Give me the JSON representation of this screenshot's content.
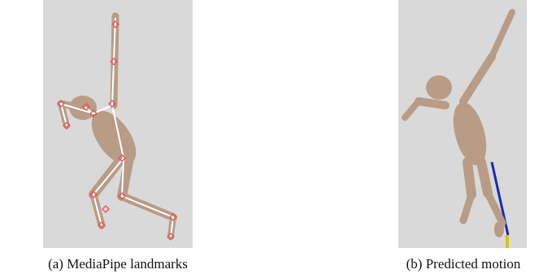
{
  "figure": {
    "panels": [
      {
        "caption": "(a) MediaPipe landmarks"
      },
      {
        "caption": "(b) Predicted motion"
      }
    ]
  }
}
